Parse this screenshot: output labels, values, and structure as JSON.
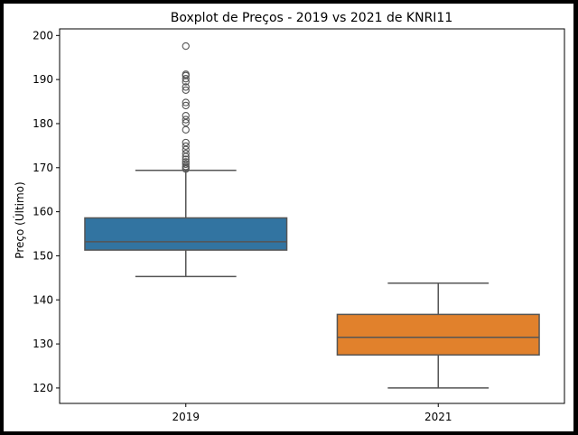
{
  "chart_data": {
    "type": "boxplot",
    "title": "Boxplot de Preços - 2019 vs 2021 de KNRI11",
    "xlabel": "",
    "ylabel": "Preço (Último)",
    "ylim": [
      116.5,
      201.5
    ],
    "yticks": [
      120,
      130,
      140,
      150,
      160,
      170,
      180,
      190,
      200
    ],
    "grid": false,
    "legend": "none",
    "categories": [
      "2019",
      "2021"
    ],
    "boxes": [
      {
        "category": "2019",
        "color": "#3274a1",
        "whisker_low": 145.3,
        "q1": 151.3,
        "median": 153.2,
        "q3": 158.6,
        "whisker_high": 169.4,
        "outliers": [
          169.7,
          170.0,
          170.3,
          170.8,
          171.3,
          171.9,
          172.5,
          173.2,
          174.1,
          174.9,
          175.7,
          178.6,
          180.2,
          180.9,
          181.8,
          184.1,
          184.8,
          187.6,
          188.3,
          189.5,
          190.2,
          190.9,
          191.2,
          197.6
        ]
      },
      {
        "category": "2021",
        "color": "#e1812c",
        "whisker_low": 120.0,
        "q1": 127.5,
        "median": 131.5,
        "q3": 136.7,
        "whisker_high": 143.8,
        "outliers": []
      }
    ]
  }
}
